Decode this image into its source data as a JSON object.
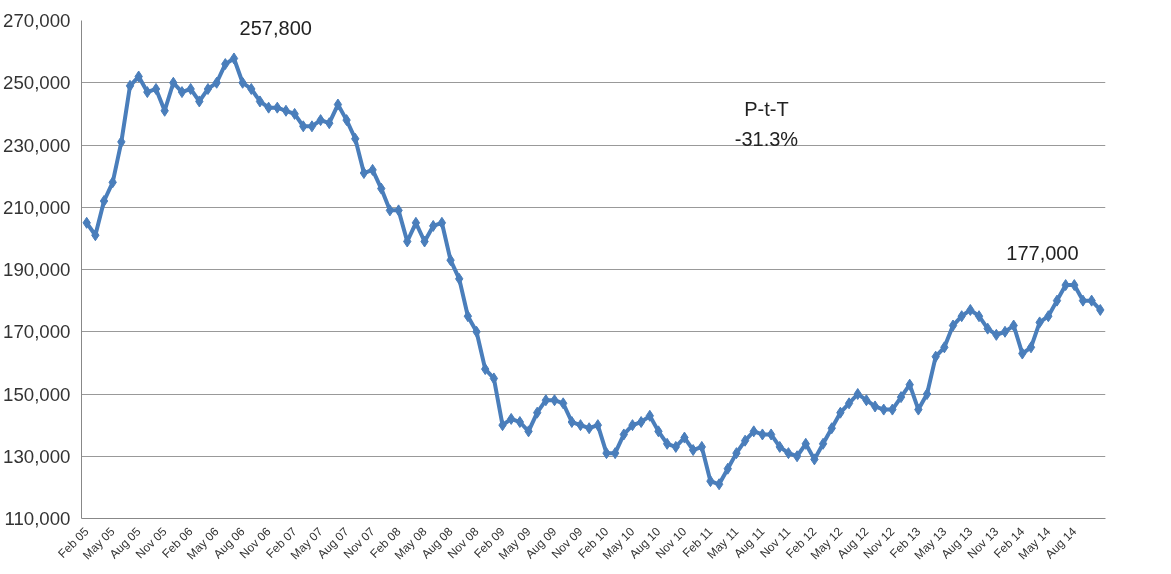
{
  "chart_data": {
    "type": "line",
    "categories": [
      "Feb 05",
      null,
      null,
      "May 05",
      null,
      null,
      "Aug 05",
      null,
      null,
      "Nov 05",
      null,
      null,
      "Feb 06",
      null,
      null,
      "May 06",
      null,
      null,
      "Aug 06",
      null,
      null,
      "Nov 06",
      null,
      null,
      "Feb 07",
      null,
      null,
      "May 07",
      null,
      null,
      "Aug 07",
      null,
      null,
      "Nov 07",
      null,
      null,
      "Feb 08",
      null,
      null,
      "May 08",
      null,
      null,
      "Aug 08",
      null,
      null,
      "Nov 08",
      null,
      null,
      "Feb 09",
      null,
      null,
      "May 09",
      null,
      null,
      "Aug 09",
      null,
      null,
      "Nov 09",
      null,
      null,
      "Feb 10",
      null,
      null,
      "May 10",
      null,
      null,
      "Aug 10",
      null,
      null,
      "Nov 10",
      null,
      null,
      "Feb 11",
      null,
      null,
      "May 11",
      null,
      null,
      "Aug 11",
      null,
      null,
      "Nov 11",
      null,
      null,
      "Feb 12",
      null,
      null,
      "May 12",
      null,
      null,
      "Aug 12",
      null,
      null,
      "Nov 12",
      null,
      null,
      "Feb 13",
      null,
      null,
      "May 13",
      null,
      null,
      "Aug 13",
      null,
      null,
      "Nov 13",
      null,
      null,
      "Feb 14",
      null,
      null,
      "May 14",
      null,
      null,
      "Aug 14",
      null,
      null,
      null
    ],
    "series": [
      {
        "color": "#4a7ebb",
        "values": [
          205000,
          201000,
          212000,
          218000,
          231000,
          249000,
          252000,
          247000,
          248000,
          241000,
          250000,
          247000,
          248000,
          244000,
          248000,
          250000,
          256000,
          257800,
          250000,
          248000,
          244000,
          242000,
          242000,
          241000,
          240000,
          236000,
          236000,
          238000,
          237000,
          243000,
          238000,
          232000,
          221000,
          222000,
          216000,
          209000,
          209000,
          199000,
          205000,
          199000,
          204000,
          205000,
          193000,
          187000,
          175000,
          170000,
          158000,
          155000,
          140000,
          142000,
          141000,
          138000,
          144000,
          148000,
          148000,
          147000,
          141000,
          140000,
          139000,
          140000,
          131000,
          131000,
          137000,
          140000,
          141000,
          143000,
          138000,
          134000,
          133000,
          136000,
          132000,
          133000,
          122000,
          121000,
          126000,
          131000,
          135000,
          138000,
          137000,
          137000,
          133000,
          131000,
          130000,
          134000,
          129000,
          134000,
          139000,
          144000,
          147000,
          150000,
          148000,
          146000,
          145000,
          145000,
          149000,
          153000,
          145000,
          150000,
          162000,
          165000,
          172000,
          175000,
          177000,
          175000,
          171000,
          169000,
          170000,
          172000,
          163000,
          165000,
          173000,
          175000,
          180000,
          185000,
          185000,
          180000,
          180000,
          177000
        ]
      }
    ],
    "ylim": [
      110000,
      270000
    ],
    "yticks": [
      {
        "value": 110000,
        "label": "110,000"
      },
      {
        "value": 130000,
        "label": "130,000"
      },
      {
        "value": 150000,
        "label": "150,000"
      },
      {
        "value": 170000,
        "label": "170,000"
      },
      {
        "value": 190000,
        "label": "190,000"
      },
      {
        "value": 210000,
        "label": "210,000"
      },
      {
        "value": 230000,
        "label": "230,000"
      },
      {
        "value": 250000,
        "label": "250,000"
      },
      {
        "value": 270000,
        "label": "270,000"
      }
    ],
    "grid": "y",
    "marker": "diamond",
    "line_style": "solid",
    "annotations": [
      "257,800",
      "P-t-T",
      "-31.3%",
      "177,000"
    ]
  }
}
